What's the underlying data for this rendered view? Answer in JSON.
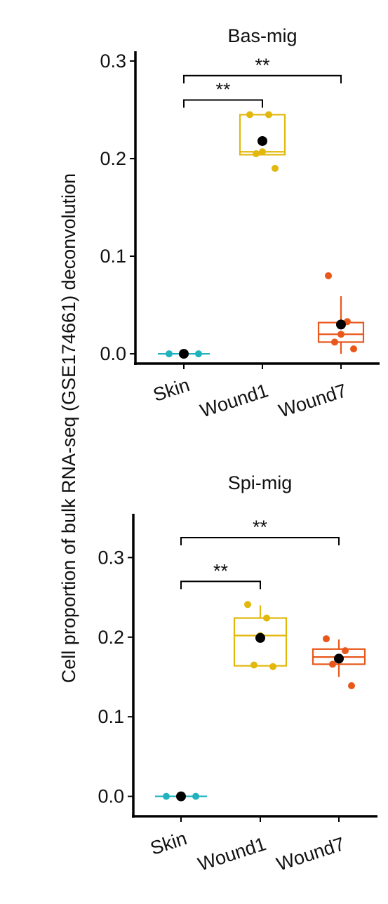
{
  "figure": {
    "shared_ylabel": "Cell proportion of bulk RNA-seq (GSE174661) deconvolution"
  },
  "colors": {
    "Skin": "#1fb3be",
    "Wound1": "#e2b80c",
    "Wound7": "#e9571b",
    "mean_point": "#000000",
    "axis": "#000000"
  },
  "chart_data": [
    {
      "type": "box",
      "title": "Bas-mig",
      "ylabel": "Cell proportion of bulk RNA-seq (GSE174661) deconvolution",
      "categories": [
        "Skin",
        "Wound1",
        "Wound7"
      ],
      "yticks": [
        "0.0",
        "0.1",
        "0.2",
        "0.3"
      ],
      "ylim": [
        -0.01,
        0.31
      ],
      "boxes": [
        {
          "group": "Skin",
          "q1": 0.0,
          "median": 0.0,
          "q3": 0.0,
          "whisker_low": 0.0,
          "whisker_high": 0.0,
          "mean": 0.0,
          "points": [
            0.0,
            0.0,
            0.0
          ]
        },
        {
          "group": "Wound1",
          "q1": 0.204,
          "median": 0.207,
          "q3": 0.245,
          "whisker_low": 0.204,
          "whisker_high": 0.245,
          "mean": 0.218,
          "points": [
            0.245,
            0.245,
            0.207,
            0.205,
            0.19
          ]
        },
        {
          "group": "Wound7",
          "q1": 0.012,
          "median": 0.02,
          "q3": 0.032,
          "whisker_low": 0.0,
          "whisker_high": 0.059,
          "mean": 0.03,
          "points": [
            0.08,
            0.033,
            0.02,
            0.012,
            0.005
          ]
        }
      ],
      "significance": [
        {
          "from": "Skin",
          "to": "Wound1",
          "label": "**",
          "y": 0.26
        },
        {
          "from": "Skin",
          "to": "Wound7",
          "label": "**",
          "y": 0.285
        }
      ]
    },
    {
      "type": "box",
      "title": "Spi-mig",
      "ylabel": "Cell proportion of bulk RNA-seq (GSE174661) deconvolution",
      "categories": [
        "Skin",
        "Wound1",
        "Wound7"
      ],
      "yticks": [
        "0.0",
        "0.1",
        "0.2",
        "0.3"
      ],
      "ylim": [
        -0.025,
        0.355
      ],
      "boxes": [
        {
          "group": "Skin",
          "q1": 0.0,
          "median": 0.0,
          "q3": 0.0,
          "whisker_low": 0.0,
          "whisker_high": 0.0,
          "mean": 0.0,
          "points": [
            0.0,
            0.0,
            0.0
          ]
        },
        {
          "group": "Wound1",
          "q1": 0.164,
          "median": 0.202,
          "q3": 0.224,
          "whisker_low": 0.164,
          "whisker_high": 0.24,
          "mean": 0.199,
          "points": [
            0.241,
            0.224,
            0.202,
            0.165,
            0.163
          ]
        },
        {
          "group": "Wound7",
          "q1": 0.166,
          "median": 0.175,
          "q3": 0.185,
          "whisker_low": 0.15,
          "whisker_high": 0.197,
          "mean": 0.173,
          "points": [
            0.198,
            0.183,
            0.173,
            0.166,
            0.139
          ]
        }
      ],
      "significance": [
        {
          "from": "Skin",
          "to": "Wound1",
          "label": "**",
          "y": 0.27
        },
        {
          "from": "Skin",
          "to": "Wound7",
          "label": "**",
          "y": 0.325
        }
      ]
    }
  ]
}
